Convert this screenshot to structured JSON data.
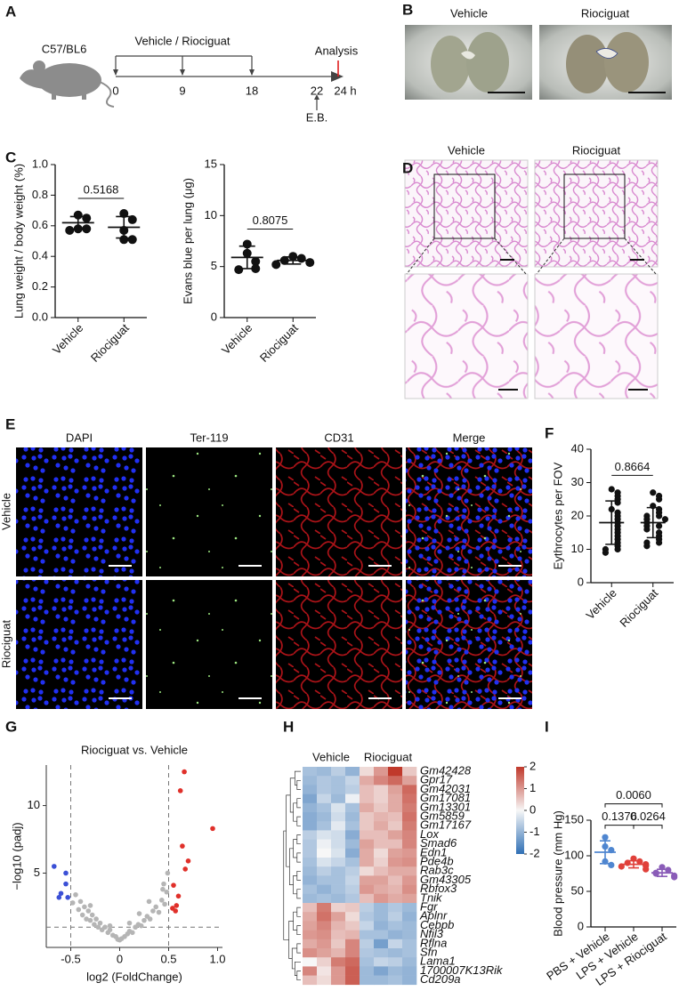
{
  "panel_labels": [
    "A",
    "B",
    "C",
    "D",
    "E",
    "F",
    "G",
    "H",
    "I"
  ],
  "schematic": {
    "strain": "C57/BL6",
    "treatment": "Vehicle / Riociguat",
    "endpoint": "Analysis",
    "timepoints": [
      "0",
      "9",
      "18",
      "22",
      "24 h"
    ],
    "tracer": "E.B."
  },
  "images": {
    "lung_photos": {
      "columns": [
        "Vehicle",
        "Riociguat"
      ]
    },
    "histology": {
      "columns": [
        "Vehicle",
        "Riociguat"
      ]
    },
    "immunofluorescence": {
      "channels": [
        "DAPI",
        "Ter-119",
        "CD31",
        "Merge"
      ],
      "rows": [
        "Vehicle",
        "Riociguat"
      ]
    }
  },
  "chart_data": [
    {
      "type": "dot",
      "ylabel": "Lung weight / body weight (%)",
      "categories": [
        "Vehicle",
        "Riociguat"
      ],
      "values": [
        [
          0.67,
          0.65,
          0.58,
          0.58,
          0.57
        ],
        [
          0.68,
          0.64,
          0.57,
          0.51,
          0.51
        ]
      ],
      "means": [
        0.62,
        0.59
      ],
      "sd": [
        0.04,
        0.07
      ],
      "colors": [
        "#111111",
        "#111111"
      ],
      "ylim": [
        0,
        1
      ],
      "yticks": [
        {
          "value": 0,
          "label": "0.0"
        },
        0.2,
        0.4,
        0.6,
        0.8,
        {
          "value": 1,
          "label": "1.0"
        }
      ],
      "comparisons": [
        {
          "groups": [
            "Vehicle",
            "Riociguat"
          ],
          "p": "0.5168"
        }
      ]
    },
    {
      "type": "dot",
      "ylabel": "Evans blue per lung (μg)",
      "categories": [
        "Vehicle",
        "Riociguat"
      ],
      "values": [
        [
          7.2,
          6.3,
          5.5,
          4.8,
          4.7
        ],
        [
          6.0,
          5.8,
          5.6,
          5.4,
          5.2
        ]
      ],
      "means": [
        5.9,
        5.6
      ],
      "sd": [
        1.1,
        0.35
      ],
      "colors": [
        "#111111",
        "#111111"
      ],
      "ylim": [
        0,
        15
      ],
      "yticks": [
        0,
        5,
        10,
        15
      ],
      "comparisons": [
        {
          "groups": [
            "Vehicle",
            "Riociguat"
          ],
          "p": "0.8075"
        }
      ]
    },
    {
      "type": "dot",
      "ylabel": "Eythrocytes per FOV",
      "categories": [
        "Vehicle",
        "Riociguat"
      ],
      "values": [
        [
          28,
          27,
          26,
          25,
          24,
          22,
          21,
          20,
          19,
          18,
          17,
          16,
          15,
          14,
          13,
          12,
          11,
          10,
          10,
          9
        ],
        [
          27,
          26,
          25,
          23,
          22,
          21,
          20,
          20,
          19,
          19,
          18,
          17,
          17,
          16,
          15,
          14,
          13,
          12,
          12,
          11
        ]
      ],
      "means": [
        18,
        18
      ],
      "sd": [
        6.5,
        4.5
      ],
      "colors": [
        "#111111",
        "#111111"
      ],
      "ylim": [
        0,
        40
      ],
      "yticks": [
        0,
        10,
        20,
        30,
        40
      ],
      "comparisons": [
        {
          "groups": [
            "Vehicle",
            "Riociguat"
          ],
          "p": "0.8664"
        }
      ]
    },
    {
      "type": "scatter",
      "title": "Riociguat vs. Vehicle",
      "xlabel": "log2 (FoldChange)",
      "ylabel": "−log10 (padj)",
      "series": [
        {
          "color": "#b5b5b5",
          "x": [
            -0.48,
            -0.45,
            -0.42,
            -0.4,
            -0.38,
            -0.36,
            -0.34,
            -0.32,
            -0.3,
            -0.28,
            -0.26,
            -0.24,
            -0.22,
            -0.2,
            -0.18,
            -0.15,
            -0.12,
            -0.1,
            -0.07,
            -0.04,
            -0.02,
            0,
            0.02,
            0.05,
            0.08,
            0.1,
            0.13,
            0.16,
            0.19,
            0.22,
            0.25,
            0.28,
            0.31,
            0.34,
            0.37,
            0.4,
            0.43,
            0.46,
            0.48,
            0.45,
            0.49,
            0.44,
            -0.3,
            0.3,
            0.2,
            0.1,
            -0.1
          ],
          "y": [
            2.8,
            3.4,
            2.3,
            2.9,
            1.9,
            2.5,
            1.6,
            2.2,
            1.5,
            1.9,
            1.2,
            1.6,
            1.0,
            1.3,
            0.8,
            1.0,
            0.6,
            0.8,
            0.4,
            0.3,
            0.1,
            0.05,
            0.15,
            0.3,
            0.5,
            0.7,
            0.6,
            1.0,
            1.2,
            1.1,
            1.5,
            1.8,
            1.6,
            2.2,
            2.5,
            2.1,
            3.0,
            2.7,
            3.6,
            4.2,
            5.0,
            3.8,
            2.6,
            2.9,
            2.0,
            1.3,
            1.1
          ]
        },
        {
          "color": "#3b50d6",
          "x": [
            -0.67,
            -0.55,
            -0.55,
            -0.6,
            -0.62,
            -0.53
          ],
          "y": [
            5.5,
            5.0,
            4.2,
            3.5,
            3.2,
            3.2
          ]
        },
        {
          "color": "#e0302a",
          "x": [
            0.66,
            0.62,
            0.95,
            0.64,
            0.7,
            0.67,
            0.55,
            0.6,
            0.58,
            0.54,
            0.57
          ],
          "y": [
            12.5,
            11.1,
            8.3,
            7.0,
            5.9,
            5.3,
            4.1,
            3.3,
            2.6,
            2.4,
            2.2
          ]
        }
      ],
      "xlim": [
        -0.75,
        1.05
      ],
      "ylim": [
        -0.5,
        13
      ],
      "xticks": [
        -0.5,
        0,
        0.5,
        {
          "value": 1,
          "label": "1.0"
        }
      ],
      "yticks": [
        5,
        10
      ],
      "thresholds": {
        "x": [
          -0.5,
          0.5
        ],
        "y": 1
      }
    },
    {
      "type": "heatmap",
      "column_groups": [
        "Vehicle",
        "Riociguat"
      ],
      "rows": [
        "Gm42428",
        "Gpr17",
        "Gm42031",
        "Gm17081",
        "Gm13301",
        "Gm5859",
        "Gm17167",
        "Lox",
        "Smad6",
        "Edn1",
        "Pde4b",
        "Rab3c",
        "Gm43305",
        "Rbfox3",
        "Tnik",
        "Fgr",
        "Aplnr",
        "Cebpb",
        "Nfil3",
        "Rflna",
        "Sfn",
        "Lama1",
        "1700007K13Rik",
        "Cd209a"
      ],
      "values": [
        [
          -0.8,
          -0.9,
          -0.6,
          -1.0,
          0.3,
          1.0,
          2.0,
          0.5
        ],
        [
          -0.9,
          -0.7,
          -0.8,
          -0.5,
          0.8,
          1.2,
          1.5,
          0.9
        ],
        [
          -1.0,
          -0.7,
          -0.8,
          -0.6,
          0.6,
          0.4,
          0.9,
          1.5
        ],
        [
          -1.2,
          -0.5,
          -0.9,
          -0.1,
          0.6,
          0.4,
          0.8,
          1.4
        ],
        [
          -1.0,
          -0.8,
          -0.3,
          -0.8,
          0.8,
          0.5,
          0.8,
          1.3
        ],
        [
          -1.1,
          -0.9,
          -0.4,
          -0.9,
          0.5,
          0.7,
          0.6,
          1.4
        ],
        [
          -1.1,
          -0.8,
          -0.2,
          -0.8,
          0.5,
          0.8,
          0.5,
          1.3
        ],
        [
          -0.6,
          -0.3,
          -0.4,
          -1.1,
          0.6,
          0.6,
          0.9,
          1.2
        ],
        [
          -0.7,
          -0.1,
          -0.4,
          -0.9,
          0.9,
          0.6,
          0.6,
          1.2
        ],
        [
          -0.7,
          0.0,
          -0.3,
          -1.1,
          0.8,
          0.3,
          0.9,
          1.0
        ],
        [
          -0.8,
          -0.3,
          -0.5,
          -0.8,
          0.8,
          0.4,
          1.0,
          1.1
        ],
        [
          -0.9,
          -0.6,
          -0.8,
          -0.6,
          0.3,
          0.6,
          0.8,
          0.8
        ],
        [
          -1.0,
          -0.8,
          -0.8,
          -0.5,
          0.9,
          0.9,
          0.6,
          1.0
        ],
        [
          -0.8,
          -1.0,
          -0.8,
          -0.6,
          1.0,
          0.8,
          0.7,
          1.1
        ],
        [
          -0.9,
          -0.8,
          -0.9,
          -0.7,
          0.6,
          1.0,
          0.8,
          0.9
        ],
        [
          0.6,
          1.3,
          0.4,
          0.5,
          -0.6,
          -0.9,
          -0.7,
          -0.9
        ],
        [
          0.8,
          1.4,
          0.9,
          0.3,
          -0.7,
          -0.9,
          -0.6,
          -1.0
        ],
        [
          0.9,
          1.2,
          0.7,
          0.5,
          -0.5,
          -1.0,
          -0.8,
          -0.9
        ],
        [
          1.0,
          1.1,
          0.6,
          0.7,
          -0.8,
          -0.8,
          -1.0,
          -0.9
        ],
        [
          0.8,
          1.0,
          0.5,
          1.2,
          -0.6,
          -1.3,
          -0.5,
          -0.8
        ],
        [
          1.1,
          0.9,
          0.7,
          1.2,
          -0.7,
          -0.8,
          -0.9,
          -0.8
        ],
        [
          0.0,
          0.4,
          1.3,
          1.5,
          -0.8,
          -0.5,
          -0.6,
          -0.9
        ],
        [
          1.2,
          0.2,
          1.0,
          1.6,
          -0.9,
          -1.2,
          -0.9,
          -1.0
        ],
        [
          0.6,
          0.3,
          1.0,
          1.6,
          -0.9,
          -0.9,
          -0.8,
          -1.0
        ]
      ],
      "colormap": [
        "#2f6fb5",
        "#f7f7f7",
        "#c0392b"
      ],
      "zlim": [
        -2,
        2
      ],
      "zticks": [
        2,
        1,
        0,
        -1,
        -2
      ]
    },
    {
      "type": "dot",
      "ylabel": "Blood pressure (mm Hg)",
      "categories": [
        "PBS + Vehicle",
        "LPS + Vehicle",
        "LPS + Riociguat"
      ],
      "values": [
        [
          126,
          113,
          108,
          92,
          87
        ],
        [
          96,
          92,
          90,
          88,
          86,
          85,
          81
        ],
        [
          84,
          80,
          76,
          75,
          72,
          70
        ]
      ],
      "means": [
        105,
        88,
        76
      ],
      "sd": [
        16,
        5,
        5
      ],
      "colors": [
        "#4f86d0",
        "#e0403a",
        "#8a5cb8"
      ],
      "ylim": [
        0,
        150
      ],
      "yticks": [
        0,
        50,
        100,
        150
      ],
      "comparisons": [
        {
          "groups": [
            "PBS + Vehicle",
            "LPS + Vehicle"
          ],
          "p": "0.1376"
        },
        {
          "groups": [
            "LPS + Vehicle",
            "LPS + Riociguat"
          ],
          "p": "0.0264"
        },
        {
          "groups": [
            "PBS + Vehicle",
            "LPS + Riociguat"
          ],
          "p": "0.0060"
        }
      ]
    }
  ]
}
